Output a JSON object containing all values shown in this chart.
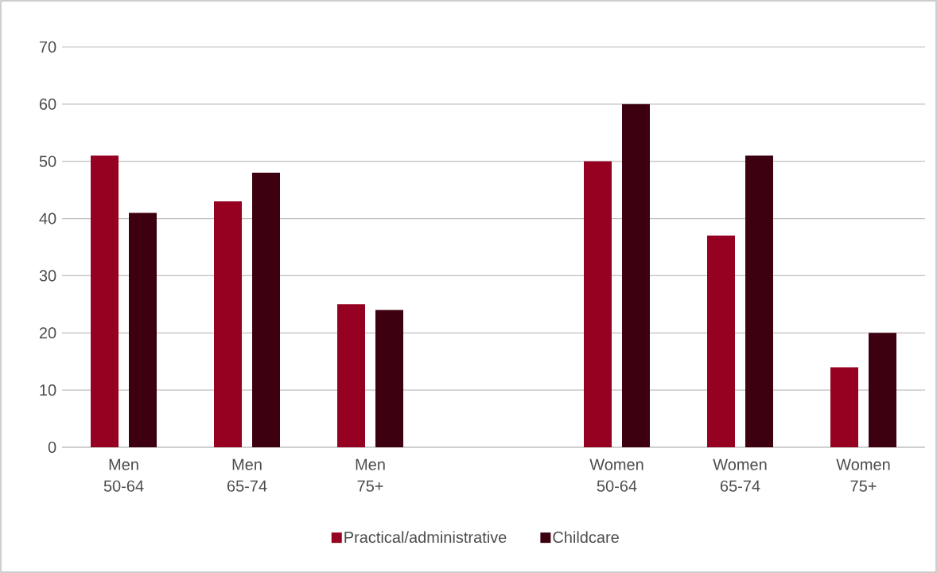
{
  "chart_data": {
    "type": "bar",
    "categories": [
      "Men 50-64",
      "Men 65-74",
      "Men 75+",
      null,
      "Women 50-64",
      "Women 65-74",
      "Women 75+"
    ],
    "series": [
      {
        "name": "Practical/administrative",
        "color": "#960021",
        "values": [
          51,
          43,
          25,
          null,
          50,
          37,
          14
        ]
      },
      {
        "name": "Childcare",
        "color": "#3d0010",
        "values": [
          41,
          48,
          24,
          null,
          60,
          51,
          20
        ]
      }
    ],
    "ylim": [
      0,
      70
    ],
    "yticks": [
      0,
      10,
      20,
      30,
      40,
      50,
      60,
      70
    ],
    "grid": "y",
    "legend": "bottom"
  }
}
